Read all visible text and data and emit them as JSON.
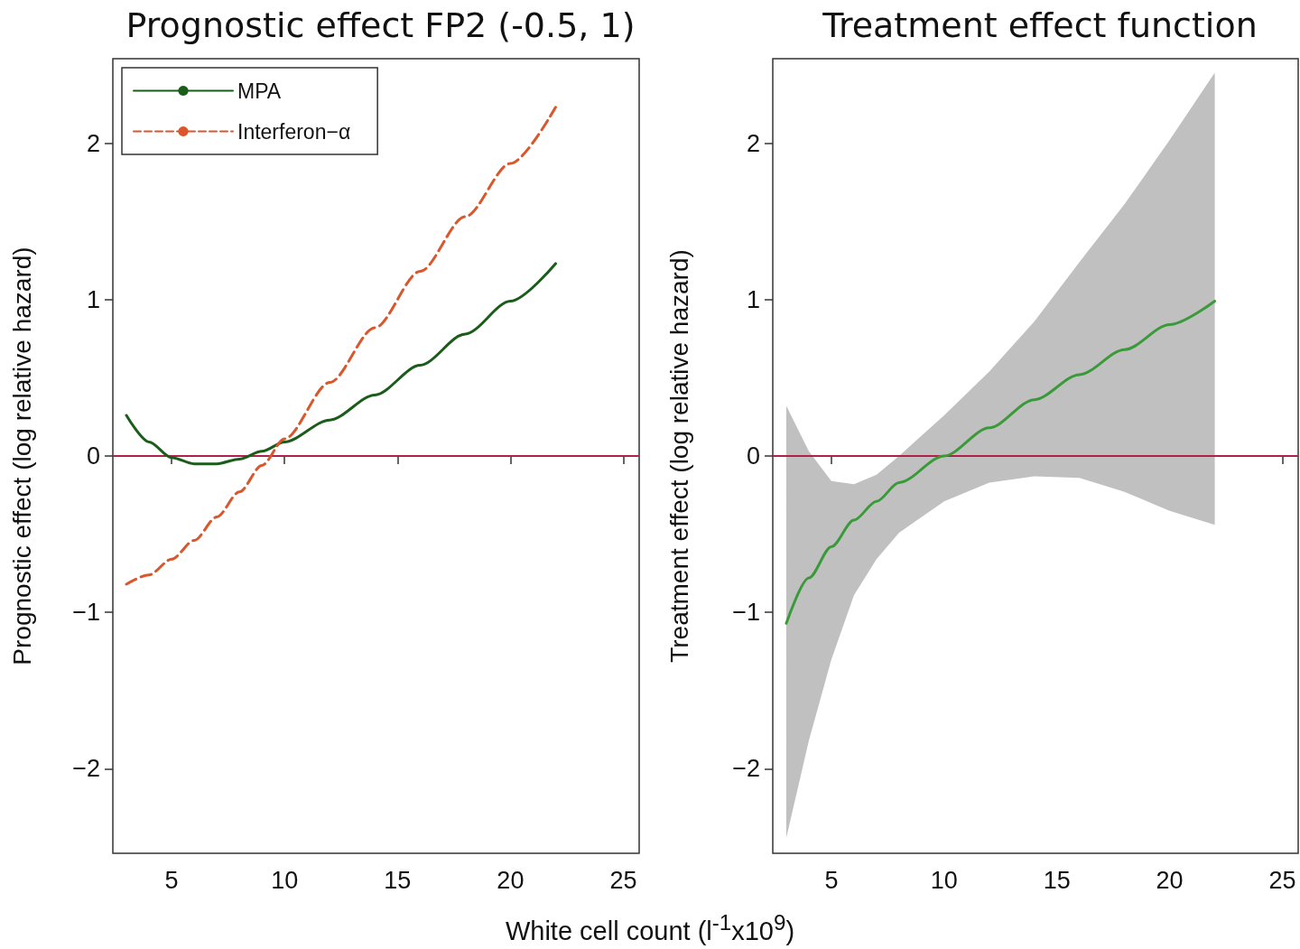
{
  "chart_data": [
    {
      "type": "line",
      "title": "Prognostic effect FP2 (-0.5, 1)",
      "xlabel": "White cell count (l$^{-1}$x10$^{9}$)",
      "ylabel": "Prognostic effect (log relative hazard)",
      "xlim": [
        2.4,
        25.7
      ],
      "ylim": [
        -2.54,
        2.54
      ],
      "xticks": [
        5,
        10,
        15,
        20,
        25
      ],
      "yticks": [
        -2,
        -1,
        0,
        1,
        2
      ],
      "grid": false,
      "legend": "top left",
      "ref_lines": [
        {
          "axis": "y",
          "value": 0,
          "color": "#b0204a"
        }
      ],
      "series": [
        {
          "name": "MPA",
          "color": "#1a5c1a",
          "line_style": "solid",
          "x": [
            3,
            4,
            5,
            6,
            7,
            8,
            9,
            10,
            12,
            14,
            16,
            18,
            20,
            22
          ],
          "values": [
            0.26,
            0.09,
            -0.01,
            -0.05,
            -0.05,
            -0.02,
            0.03,
            0.09,
            0.23,
            0.39,
            0.58,
            0.78,
            0.99,
            1.23
          ]
        },
        {
          "name": "Interferon−α",
          "color": "#d9572b",
          "line_style": "dashed",
          "x": [
            3,
            4,
            5,
            6,
            7,
            8,
            9,
            10,
            12,
            14,
            16,
            18,
            20,
            22
          ],
          "values": [
            -0.82,
            -0.76,
            -0.66,
            -0.54,
            -0.39,
            -0.23,
            -0.06,
            0.11,
            0.47,
            0.82,
            1.18,
            1.53,
            1.87,
            2.23
          ]
        }
      ]
    },
    {
      "type": "line",
      "title": "Treatment effect function",
      "ylabel": "Treatment effect (log relative hazard)",
      "xlim": [
        2.4,
        25.7
      ],
      "ylim": [
        -2.54,
        2.54
      ],
      "xticks": [
        5,
        10,
        15,
        20,
        25
      ],
      "yticks": [
        -2,
        -1,
        0,
        1,
        2
      ],
      "grid": false,
      "ref_lines": [
        {
          "axis": "y",
          "value": 0,
          "color": "#b0204a"
        }
      ],
      "series": [
        {
          "color": "#3a9a3a",
          "line_style": "solid",
          "x": [
            3,
            4,
            5,
            6,
            7,
            8,
            10,
            12,
            14,
            16,
            18,
            20,
            22
          ],
          "values": [
            -1.07,
            -0.78,
            -0.58,
            -0.41,
            -0.29,
            -0.17,
            0,
            0.18,
            0.36,
            0.52,
            0.68,
            0.84,
            0.99
          ],
          "lower": [
            -2.44,
            -1.82,
            -1.3,
            -0.89,
            -0.66,
            -0.49,
            -0.29,
            -0.17,
            -0.13,
            -0.14,
            -0.23,
            -0.35,
            -0.44
          ],
          "upper": [
            0.32,
            0.03,
            -0.16,
            -0.18,
            -0.12,
            0,
            0.26,
            0.54,
            0.86,
            1.24,
            1.61,
            2.02,
            2.45
          ]
        }
      ]
    }
  ]
}
